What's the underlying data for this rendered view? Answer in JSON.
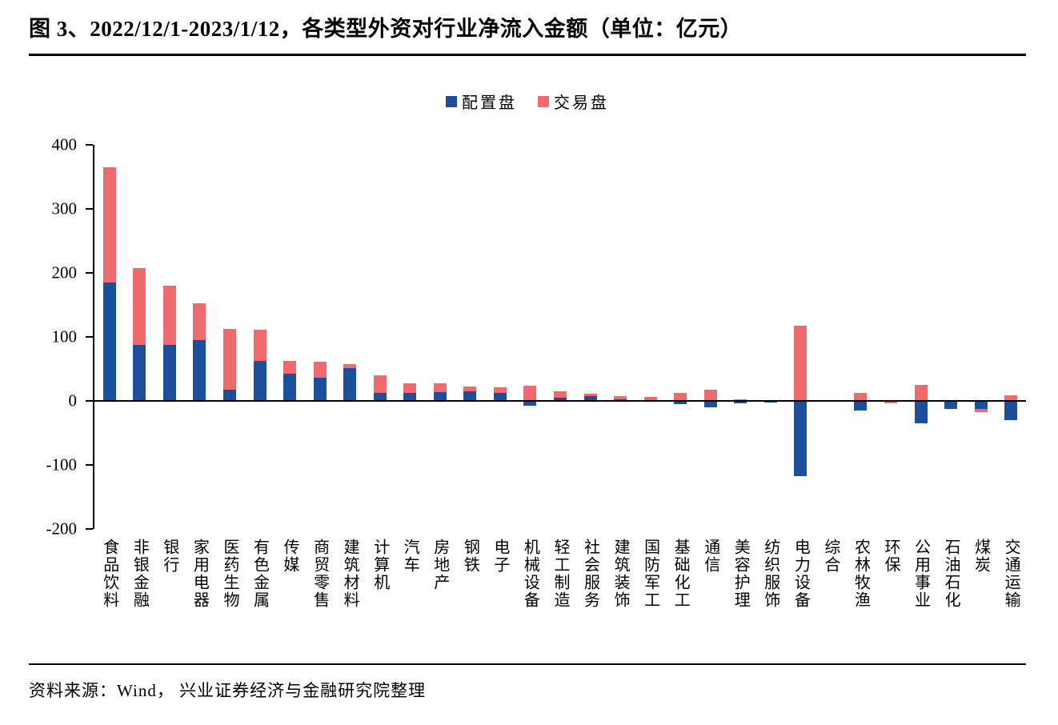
{
  "title": "图 3、2022/12/1-2023/1/12，各类型外资对行业净流入金额（单位：亿元）",
  "source": "资料来源：Wind， 兴业证券经济与金融研究院整理",
  "colors": {
    "allocation_blue": "#1b4f9c",
    "trading_red": "#ee6a6c",
    "axis_black": "#000000"
  },
  "chart_data": {
    "type": "bar",
    "stacked": true,
    "title": "2022/12/1-2023/1/12，各类型外资对行业净流入金额（单位：亿元）",
    "xlabel": "",
    "ylabel": "",
    "ylim": [
      -200,
      400
    ],
    "yticks": [
      400,
      300,
      200,
      100,
      0,
      -100,
      -200
    ],
    "grid": false,
    "legend_position": "top",
    "categories": [
      "食品饮料",
      "非银金融",
      "银行",
      "家用电器",
      "医药生物",
      "有色金属",
      "传媒",
      "商贸零售",
      "建筑材料",
      "计算机",
      "汽车",
      "房地产",
      "钢铁",
      "电子",
      "机械设备",
      "轻工制造",
      "社会服务",
      "建筑装饰",
      "国防军工",
      "基础化工",
      "通信",
      "美容护理",
      "纺织服饰",
      "电力设备",
      "综合",
      "农林牧渔",
      "环保",
      "公用事业",
      "石油石化",
      "煤炭",
      "交通运输"
    ],
    "series": [
      {
        "name": "配置盘",
        "color": "#1b4f9c",
        "values": [
          185,
          88,
          87,
          95,
          18,
          62,
          43,
          36,
          51,
          13,
          12,
          14,
          15,
          13,
          -8,
          5,
          7,
          2,
          1,
          -5,
          -10,
          -4,
          -2,
          -117,
          -1,
          -15,
          -1,
          -35,
          -12,
          -13,
          -30
        ]
      },
      {
        "name": "交易盘",
        "color": "#ee6a6c",
        "values": [
          180,
          119,
          93,
          57,
          95,
          49,
          20,
          25,
          6,
          27,
          16,
          13,
          7,
          8,
          24,
          10,
          4,
          6,
          5,
          12,
          17,
          2,
          1,
          118,
          1,
          12,
          -3,
          25,
          0,
          -5,
          9
        ]
      }
    ]
  }
}
